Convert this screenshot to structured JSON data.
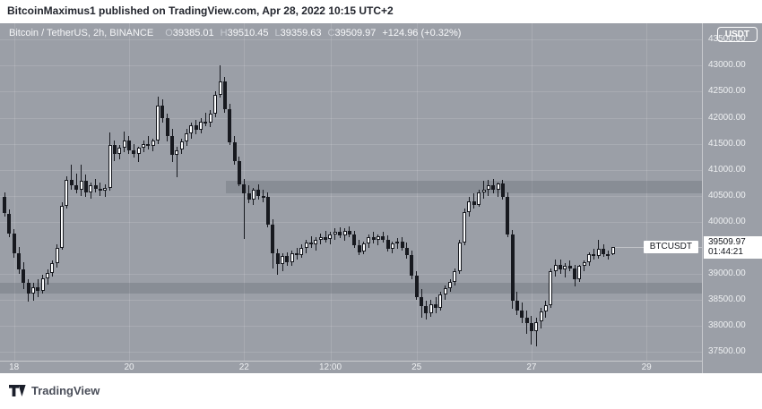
{
  "attribution": "BitcoinMaximus1 published on TradingView.com, Apr 28, 2022 10:15 UTC+2",
  "legend": {
    "symbol": "Bitcoin / TetherUS, 2h, BINANCE",
    "o_label": "O",
    "o": "39385.01",
    "h_label": "H",
    "h": "39510.45",
    "l_label": "L",
    "l": "39359.63",
    "c_label": "C",
    "c": "39509.97",
    "change": "+124.96 (+0.32%)"
  },
  "axis": {
    "currency_button": "USDT"
  },
  "price_label": {
    "symbol": "BTCUSDT",
    "price": "39509.97",
    "countdown": "01:44:21"
  },
  "footer": {
    "brand": "TradingView"
  },
  "colors": {
    "chart_bg": "#9b9fa7",
    "candle_dark": "#17191f",
    "candle_light": "#fcfdfe",
    "zone": "rgba(62,68,80,0.20)",
    "axis_text": "#eef0f2",
    "label_bg": "#ffffff",
    "label_text": "#15181e"
  },
  "chart_data": {
    "type": "candlestick",
    "title": "Bitcoin / TetherUS, 2h, BINANCE",
    "interval": "2h",
    "exchange": "BINANCE",
    "symbol": "BTCUSDT",
    "last_ohlc": {
      "o": 39385.01,
      "h": 39510.45,
      "l": 39359.63,
      "c": 39509.97,
      "change": 124.96,
      "change_pct": 0.32
    },
    "last_price": 39509.97,
    "countdown": "01:44:21",
    "grid": true,
    "y_axis": {
      "max": 43813,
      "min": 37332,
      "tick_step": 500,
      "ticks": [
        43500,
        43000,
        42500,
        42000,
        41500,
        41000,
        40500,
        40000,
        39000,
        38500,
        38000,
        37500
      ]
    },
    "x_axis": {
      "ticks": [
        {
          "label": "18",
          "i": 2
        },
        {
          "label": "20",
          "i": 26
        },
        {
          "label": "22",
          "i": 50
        },
        {
          "label": "12:00",
          "i": 68
        },
        {
          "label": "25",
          "i": 86
        },
        {
          "label": "27",
          "i": 110
        },
        {
          "label": "29",
          "i": 134
        }
      ]
    },
    "zones": [
      {
        "name": "supply-zone",
        "price_top": 40780,
        "price_bottom": 40540,
        "start_index": 46.5
      },
      {
        "name": "demand-zone",
        "price_top": 38830,
        "price_bottom": 38620,
        "start_index": -1
      }
    ],
    "candles": [
      [
        40480,
        40570,
        40100,
        40160
      ],
      [
        40160,
        40240,
        39700,
        39780
      ],
      [
        39780,
        39860,
        39300,
        39400
      ],
      [
        39400,
        39520,
        39000,
        39080
      ],
      [
        39080,
        39220,
        38700,
        38820
      ],
      [
        38820,
        38900,
        38460,
        38620
      ],
      [
        38620,
        38830,
        38480,
        38750
      ],
      [
        38750,
        38900,
        38550,
        38680
      ],
      [
        38680,
        38980,
        38620,
        38920
      ],
      [
        38920,
        39080,
        38800,
        39020
      ],
      [
        39020,
        39260,
        38950,
        39200
      ],
      [
        39200,
        39560,
        39120,
        39500
      ],
      [
        39500,
        40380,
        39460,
        40300
      ],
      [
        40300,
        40870,
        40250,
        40800
      ],
      [
        40800,
        41090,
        40620,
        40700
      ],
      [
        40700,
        40920,
        40550,
        40620
      ],
      [
        40620,
        41100,
        40500,
        40780
      ],
      [
        40780,
        40900,
        40480,
        40560
      ],
      [
        40560,
        40750,
        40450,
        40700
      ],
      [
        40700,
        40820,
        40560,
        40640
      ],
      [
        40640,
        40750,
        40500,
        40600
      ],
      [
        40600,
        40720,
        40480,
        40650
      ],
      [
        40650,
        41720,
        40600,
        41480
      ],
      [
        41480,
        41560,
        41170,
        41300
      ],
      [
        41300,
        41480,
        41200,
        41420
      ],
      [
        41420,
        41730,
        41330,
        41560
      ],
      [
        41560,
        41650,
        41300,
        41380
      ],
      [
        41380,
        41500,
        41230,
        41310
      ],
      [
        41310,
        41450,
        41150,
        41420
      ],
      [
        41420,
        41560,
        41340,
        41500
      ],
      [
        41500,
        41640,
        41390,
        41450
      ],
      [
        41450,
        41600,
        41350,
        41560
      ],
      [
        41560,
        42400,
        41500,
        42230
      ],
      [
        42230,
        42350,
        41900,
        41990
      ],
      [
        41990,
        42080,
        41550,
        41650
      ],
      [
        41650,
        41780,
        41150,
        41280
      ],
      [
        41280,
        41450,
        40850,
        41380
      ],
      [
        41380,
        41600,
        41300,
        41550
      ],
      [
        41550,
        41780,
        41450,
        41700
      ],
      [
        41700,
        41900,
        41600,
        41850
      ],
      [
        41850,
        41950,
        41680,
        41760
      ],
      [
        41760,
        41990,
        41700,
        41930
      ],
      [
        41930,
        42100,
        41830,
        41900
      ],
      [
        41900,
        42150,
        41820,
        42080
      ],
      [
        42080,
        42500,
        42000,
        42430
      ],
      [
        42430,
        43000,
        42380,
        42690
      ],
      [
        42690,
        42780,
        42100,
        42160
      ],
      [
        42160,
        42260,
        41480,
        41520
      ],
      [
        41520,
        41650,
        41100,
        41160
      ],
      [
        41160,
        41260,
        40680,
        40720
      ],
      [
        40720,
        40820,
        39670,
        40540
      ],
      [
        40540,
        40700,
        40350,
        40420
      ],
      [
        40420,
        40650,
        40330,
        40610
      ],
      [
        40610,
        40720,
        40430,
        40500
      ],
      [
        40500,
        40620,
        40380,
        40480
      ],
      [
        40480,
        40560,
        39900,
        39950
      ],
      [
        39950,
        40050,
        39100,
        39400
      ],
      [
        39400,
        39480,
        38990,
        39180
      ],
      [
        39180,
        39400,
        39050,
        39340
      ],
      [
        39340,
        39420,
        39150,
        39220
      ],
      [
        39220,
        39450,
        39160,
        39400
      ],
      [
        39400,
        39500,
        39280,
        39360
      ],
      [
        39360,
        39560,
        39300,
        39500
      ],
      [
        39500,
        39650,
        39400,
        39600
      ],
      [
        39600,
        39730,
        39500,
        39560
      ],
      [
        39560,
        39700,
        39450,
        39650
      ],
      [
        39650,
        39780,
        39560,
        39700
      ],
      [
        39700,
        39820,
        39600,
        39660
      ],
      [
        39660,
        39800,
        39560,
        39750
      ],
      [
        39750,
        39880,
        39650,
        39800
      ],
      [
        39800,
        39900,
        39680,
        39730
      ],
      [
        39730,
        39870,
        39640,
        39820
      ],
      [
        39820,
        39910,
        39700,
        39760
      ],
      [
        39760,
        39830,
        39500,
        39550
      ],
      [
        39550,
        39650,
        39360,
        39420
      ],
      [
        39420,
        39620,
        39380,
        39580
      ],
      [
        39580,
        39750,
        39500,
        39700
      ],
      [
        39700,
        39800,
        39580,
        39650
      ],
      [
        39650,
        39760,
        39550,
        39720
      ],
      [
        39720,
        39810,
        39600,
        39660
      ],
      [
        39660,
        39740,
        39420,
        39480
      ],
      [
        39480,
        39620,
        39400,
        39580
      ],
      [
        39580,
        39690,
        39480,
        39620
      ],
      [
        39620,
        39700,
        39450,
        39500
      ],
      [
        39500,
        39600,
        39300,
        39360
      ],
      [
        39360,
        39450,
        38900,
        38960
      ],
      [
        38960,
        39050,
        38500,
        38560
      ],
      [
        38560,
        38700,
        38150,
        38380
      ],
      [
        38380,
        38480,
        38120,
        38250
      ],
      [
        38250,
        38500,
        38180,
        38420
      ],
      [
        38420,
        38550,
        38250,
        38350
      ],
      [
        38350,
        38650,
        38300,
        38600
      ],
      [
        38600,
        38780,
        38500,
        38720
      ],
      [
        38720,
        38900,
        38650,
        38850
      ],
      [
        38850,
        39100,
        38780,
        39050
      ],
      [
        39050,
        39650,
        39000,
        39600
      ],
      [
        39600,
        40250,
        39550,
        40190
      ],
      [
        40190,
        40480,
        40100,
        40400
      ],
      [
        40400,
        40550,
        40250,
        40330
      ],
      [
        40330,
        40620,
        40280,
        40560
      ],
      [
        40560,
        40780,
        40450,
        40620
      ],
      [
        40620,
        40800,
        40500,
        40700
      ],
      [
        40700,
        40830,
        40550,
        40610
      ],
      [
        40610,
        40760,
        40480,
        40730
      ],
      [
        40730,
        40800,
        40420,
        40480
      ],
      [
        40480,
        40560,
        39700,
        39760
      ],
      [
        39760,
        39850,
        38330,
        38480
      ],
      [
        38480,
        38650,
        38200,
        38300
      ],
      [
        38300,
        38450,
        38050,
        38150
      ],
      [
        38150,
        38300,
        37850,
        38050
      ],
      [
        38050,
        38200,
        37640,
        37900
      ],
      [
        37900,
        38150,
        37610,
        38080
      ],
      [
        38080,
        38350,
        37950,
        38280
      ],
      [
        38280,
        38480,
        38150,
        38400
      ],
      [
        38400,
        39100,
        38350,
        39050
      ],
      [
        39050,
        39270,
        38950,
        39180
      ],
      [
        39180,
        39280,
        39000,
        39080
      ],
      [
        39080,
        39200,
        38930,
        39150
      ],
      [
        39150,
        39260,
        39050,
        39100
      ],
      [
        39100,
        39180,
        38760,
        38900
      ],
      [
        38900,
        39180,
        38850,
        39150
      ],
      [
        39150,
        39260,
        39050,
        39220
      ],
      [
        39220,
        39420,
        39150,
        39380
      ],
      [
        39380,
        39480,
        39280,
        39350
      ],
      [
        39350,
        39650,
        39300,
        39480
      ],
      [
        39480,
        39560,
        39320,
        39370
      ],
      [
        39370,
        39450,
        39280,
        39385
      ],
      [
        39385,
        39510.45,
        39359.63,
        39509.97
      ]
    ]
  }
}
